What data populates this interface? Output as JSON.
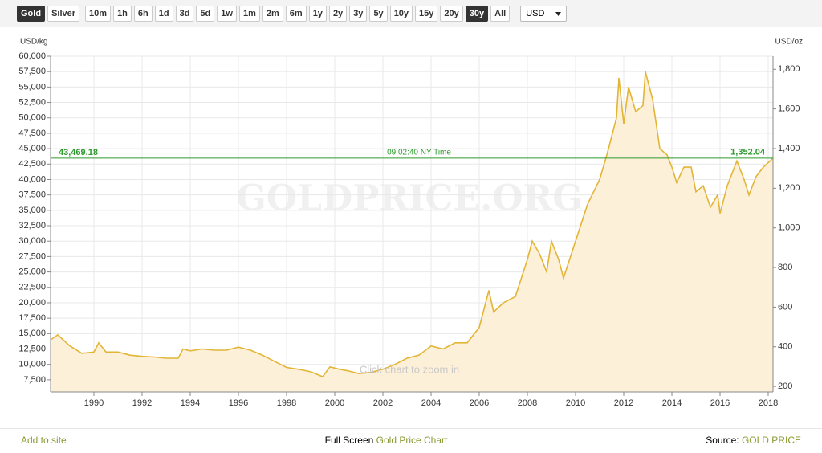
{
  "toolbar": {
    "metals": [
      "Gold",
      "Silver"
    ],
    "active_metal": "Gold",
    "ranges": [
      "10m",
      "1h",
      "6h",
      "1d",
      "3d",
      "5d",
      "1w",
      "1m",
      "2m",
      "6m",
      "1y",
      "2y",
      "3y",
      "5y",
      "10y",
      "15y",
      "20y",
      "30y",
      "All"
    ],
    "active_range": "30y",
    "currency": "USD"
  },
  "chart_data": {
    "type": "area",
    "y_axis_label": "USD/kg",
    "y2_axis_label": "USD/oz",
    "watermark": "GOLDPRICE.ORG",
    "hint": "Click chart to zoom in",
    "color": "#e2b536",
    "fill_color": "#fdf0d9",
    "grid": true,
    "xlim": [
      1988.2,
      2018.2
    ],
    "xticks": [
      1990,
      1992,
      1994,
      1996,
      1998,
      2000,
      2002,
      2004,
      2006,
      2008,
      2010,
      2012,
      2014,
      2016,
      2018
    ],
    "ylim": [
      5530,
      60000
    ],
    "yticks": [
      {
        "value": 7500,
        "label": "7,500"
      },
      {
        "value": 10000,
        "label": "10,000"
      },
      {
        "value": 12500,
        "label": "12,500"
      },
      {
        "value": 15000,
        "label": "15,000"
      },
      {
        "value": 17500,
        "label": "17,500"
      },
      {
        "value": 20000,
        "label": "20,000"
      },
      {
        "value": 22500,
        "label": "22,500"
      },
      {
        "value": 25000,
        "label": "25,000"
      },
      {
        "value": 27500,
        "label": "27,500"
      },
      {
        "value": 30000,
        "label": "30,000"
      },
      {
        "value": 32500,
        "label": "32,500"
      },
      {
        "value": 35000,
        "label": "35,000"
      },
      {
        "value": 37500,
        "label": "37,500"
      },
      {
        "value": 40000,
        "label": "40,000"
      },
      {
        "value": 42500,
        "label": "42,500"
      },
      {
        "value": 45000,
        "label": "45,000"
      },
      {
        "value": 47500,
        "label": "47,500"
      },
      {
        "value": 50000,
        "label": "50,000"
      },
      {
        "value": 52500,
        "label": "52,500"
      },
      {
        "value": 55000,
        "label": "55,000"
      },
      {
        "value": 57500,
        "label": "57,500"
      },
      {
        "value": 60000,
        "label": "60,000"
      }
    ],
    "y2lim": [
      172,
      1866
    ],
    "y2ticks": [
      200,
      400,
      600,
      800,
      {
        "value": 1000,
        "label": "1,000"
      },
      {
        "value": 1200,
        "label": "1,200"
      },
      {
        "value": 1400,
        "label": "1,400"
      },
      {
        "value": 1600,
        "label": "1,600"
      },
      {
        "value": 1800,
        "label": "1,800"
      }
    ],
    "x": [
      1988.2,
      1988.5,
      1989,
      1989.5,
      1990,
      1990.2,
      1990.5,
      1991,
      1991.5,
      1992,
      1992.5,
      1993,
      1993.5,
      1993.7,
      1994,
      1994.5,
      1995,
      1995.5,
      1996,
      1996.5,
      1997,
      1997.5,
      1998,
      1998.5,
      1999,
      1999.5,
      1999.8,
      2000.2,
      2000.5,
      2001,
      2001.5,
      2002,
      2002.5,
      2003,
      2003.5,
      2004,
      2004.5,
      2005,
      2005.5,
      2006,
      2006.4,
      2006.6,
      2007,
      2007.5,
      2008,
      2008.2,
      2008.5,
      2008.8,
      2009,
      2009.3,
      2009.5,
      2010,
      2010.5,
      2011,
      2011.3,
      2011.7,
      2011.8,
      2012,
      2012.2,
      2012.5,
      2012.8,
      2012.9,
      2013.2,
      2013.5,
      2013.8,
      2014,
      2014.2,
      2014.5,
      2014.8,
      2015,
      2015.3,
      2015.6,
      2015.9,
      2016,
      2016.3,
      2016.7,
      2017,
      2017.2,
      2017.5,
      2017.8,
      2018.2
    ],
    "values": [
      14000,
      14800,
      13000,
      11800,
      12000,
      13500,
      12000,
      12000,
      11500,
      11300,
      11200,
      11000,
      11000,
      12500,
      12200,
      12500,
      12300,
      12300,
      12800,
      12300,
      11500,
      10500,
      9500,
      9200,
      8800,
      8000,
      9600,
      9200,
      9000,
      8500,
      8700,
      9200,
      10000,
      11000,
      11500,
      13000,
      12500,
      13500,
      13500,
      16000,
      22000,
      18500,
      20000,
      21000,
      27000,
      30000,
      28000,
      25000,
      30000,
      27000,
      24000,
      30000,
      36000,
      40000,
      44000,
      50000,
      56500,
      49000,
      55000,
      51000,
      52000,
      57500,
      53000,
      45000,
      44000,
      42000,
      39500,
      42000,
      42000,
      38000,
      39000,
      35500,
      37500,
      34500,
      39000,
      43000,
      40000,
      37500,
      40500,
      42000,
      43469
    ],
    "current_price": {
      "usd_kg": {
        "value": 43469.18,
        "label": "43,469.18"
      },
      "usd_oz": {
        "value": 1352.04,
        "label": "1,352.04"
      },
      "time": "09:02:40 NY Time",
      "color": "#2e9a2e"
    }
  },
  "footer": {
    "add": "Add to site",
    "fullscreen": "Full Screen",
    "chart_link": "Gold Price Chart",
    "source_label": "Source:",
    "source": "GOLD PRICE"
  }
}
